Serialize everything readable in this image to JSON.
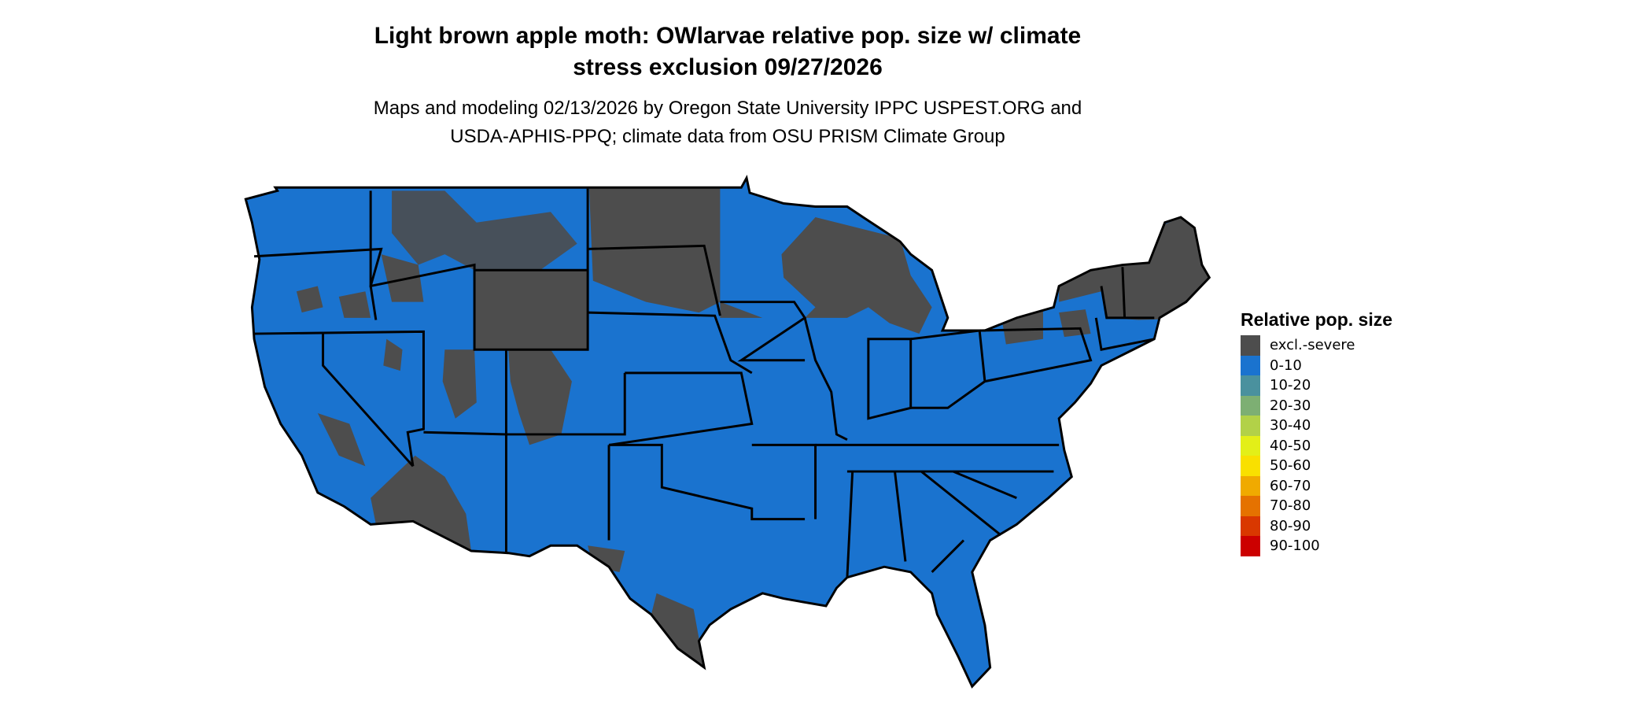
{
  "title_line1": "Light brown apple moth: OWlarvae relative pop. size w/ climate",
  "title_line2": "stress exclusion 09/27/2026",
  "subtitle_line1": "Maps and modeling 02/13/2026 by Oregon State University IPPC USPEST.ORG and",
  "subtitle_line2": "USDA-APHIS-PPQ; climate data from OSU PRISM Climate Group",
  "map": {
    "region": "Contiguous United States",
    "dominant_category": "0-10",
    "excluded_color": "#4d4d4d",
    "dominant_color": "#1a73cf",
    "border_color": "#000000"
  },
  "legend": {
    "title": "Relative pop. size",
    "items": [
      {
        "label": "excl.-severe",
        "color": "#4d4d4d"
      },
      {
        "label": "0-10",
        "color": "#1a73cf"
      },
      {
        "label": "10-20",
        "color": "#4a919e"
      },
      {
        "label": "20-30",
        "color": "#7daf73"
      },
      {
        "label": "30-40",
        "color": "#b2d148"
      },
      {
        "label": "40-50",
        "color": "#e3ef18"
      },
      {
        "label": "50-60",
        "color": "#f9e000"
      },
      {
        "label": "60-70",
        "color": "#f0aa00"
      },
      {
        "label": "70-80",
        "color": "#e57200"
      },
      {
        "label": "80-90",
        "color": "#d93800"
      },
      {
        "label": "90-100",
        "color": "#cc0000"
      }
    ]
  }
}
